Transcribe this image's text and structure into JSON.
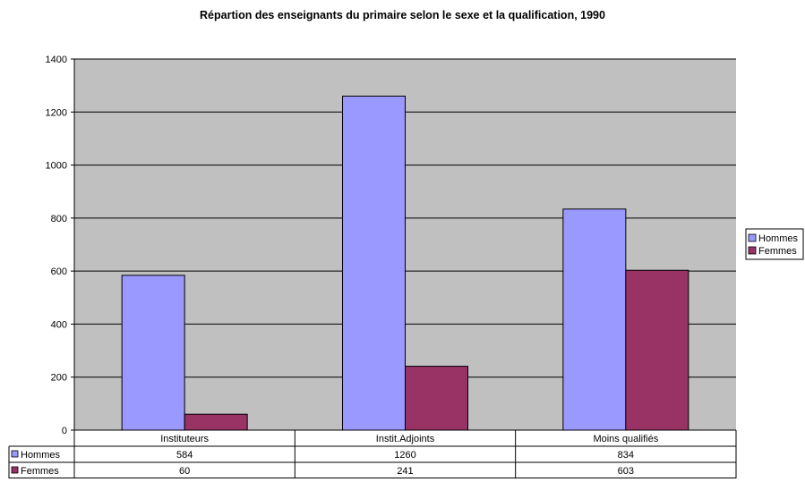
{
  "chart_data": {
    "type": "bar",
    "title": "Répartion des enseignants du primaire selon le sexe et la qualification, 1990",
    "categories": [
      "Instituteurs",
      "Instit.Adjoints",
      "Moins qualifiés"
    ],
    "series": [
      {
        "name": "Hommes",
        "values": [
          584,
          1260,
          834
        ],
        "color": "#9999ff"
      },
      {
        "name": "Femmes",
        "values": [
          60,
          241,
          603
        ],
        "color": "#993366"
      }
    ],
    "ylim": [
      0,
      1400
    ],
    "yticks": [
      0,
      200,
      400,
      600,
      800,
      1000,
      1200,
      1400
    ],
    "grid": true,
    "plot_background": "#c0c0c0",
    "legend_position": "right",
    "data_table": true,
    "data_table_rows": [
      {
        "label": "Hommes",
        "cells": [
          "584",
          "1260",
          "834"
        ]
      },
      {
        "label": "Femmes",
        "cells": [
          "60",
          "241",
          "603"
        ]
      }
    ]
  }
}
